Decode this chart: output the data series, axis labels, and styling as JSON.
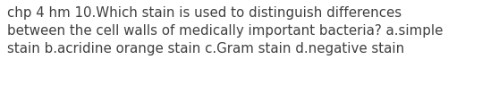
{
  "text": "chp 4 hm 10.Which stain is used to distinguish differences\nbetween the cell walls of medically important bacteria? a.simple\nstain b.acridine orange stain c.Gram stain d.negative stain",
  "background_color": "#ffffff",
  "text_color": "#404040",
  "font_size": 10.8,
  "fig_width": 5.58,
  "fig_height": 1.05,
  "dpi": 100
}
